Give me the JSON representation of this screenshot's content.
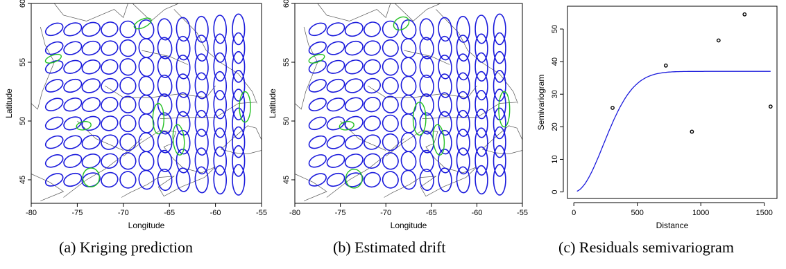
{
  "captions": [
    "(a) Kriging prediction",
    "(b) Estimated drift",
    "(c) Residuals semivariogram"
  ],
  "colors": {
    "ellipse": "#1a1adc",
    "highlight": "#22c022",
    "map": "#555555",
    "curve": "#1a1adc"
  },
  "chart_data": [
    {
      "type": "ellipse-map",
      "panel": "a",
      "xlabel": "Longitude",
      "ylabel": "Latitude",
      "xlim": [
        -80,
        -55
      ],
      "ylim": [
        43,
        60
      ],
      "xticks": [
        "-80",
        "-75",
        "-70",
        "-65",
        "-60",
        "-55"
      ],
      "yticks": [
        "45",
        "50",
        "55",
        "60"
      ],
      "grid_lon": [
        -77.5,
        -75.5,
        -73.5,
        -71.5,
        -69.5,
        -67.5,
        -65.5,
        -63.5,
        -61.5,
        -59.5,
        -57.5
      ],
      "grid_lat": [
        45,
        46.6,
        48.2,
        49.8,
        51.4,
        53,
        54.6,
        56.2,
        57.8
      ],
      "half_width_deg": [
        1.0,
        1.0,
        1.0,
        0.9,
        0.85,
        0.8,
        0.75,
        0.72,
        0.7,
        0.68,
        0.66
      ],
      "half_height_deg": [
        0.45,
        0.5,
        0.55,
        0.6,
        0.7,
        0.8,
        0.9,
        1.0,
        1.1,
        1.2,
        1.3
      ],
      "tilt_deg": [
        25,
        22,
        20,
        18,
        12,
        8,
        5,
        3,
        2,
        1,
        0
      ],
      "highlights": [
        {
          "lon": -73.5,
          "lat": 45.2,
          "a": 0.9,
          "b": 0.8,
          "tilt": 0
        },
        {
          "lon": -74.3,
          "lat": 49.6,
          "a": 0.8,
          "b": 0.35,
          "tilt": 10
        },
        {
          "lon": -66.2,
          "lat": 50.2,
          "a": 0.6,
          "b": 1.3,
          "tilt": 0
        },
        {
          "lon": -64.0,
          "lat": 48.4,
          "a": 0.6,
          "b": 1.3,
          "tilt": 5
        },
        {
          "lon": -56.8,
          "lat": 51.2,
          "a": 0.6,
          "b": 1.3,
          "tilt": 0
        },
        {
          "lon": -67.9,
          "lat": 58.3,
          "a": 1.0,
          "b": 0.35,
          "tilt": 25
        },
        {
          "lon": -77.6,
          "lat": 55.3,
          "a": 0.9,
          "b": 0.3,
          "tilt": 20
        }
      ]
    },
    {
      "type": "ellipse-map",
      "panel": "b",
      "xlabel": "Longitude",
      "ylabel": "Latitude",
      "xlim": [
        -80,
        -55
      ],
      "ylim": [
        43,
        60
      ],
      "xticks": [
        "-80",
        "-75",
        "-70",
        "-65",
        "-60",
        "-55"
      ],
      "yticks": [
        "45",
        "50",
        "55",
        "60"
      ],
      "grid_lon": [
        -77.5,
        -75.5,
        -73.5,
        -71.5,
        -69.5,
        -67.5,
        -65.5,
        -63.5,
        -61.5,
        -59.5,
        -57.5
      ],
      "grid_lat": [
        45,
        46.6,
        48.2,
        49.8,
        51.4,
        53,
        54.6,
        56.2,
        57.8
      ],
      "half_width_deg": [
        1.0,
        1.0,
        1.0,
        0.9,
        0.85,
        0.8,
        0.75,
        0.72,
        0.7,
        0.68,
        0.66
      ],
      "half_height_deg": [
        0.45,
        0.5,
        0.55,
        0.6,
        0.7,
        0.8,
        0.9,
        1.0,
        1.1,
        1.2,
        1.3
      ],
      "tilt_deg": [
        25,
        22,
        20,
        18,
        12,
        8,
        5,
        3,
        2,
        1,
        0
      ],
      "highlights": [
        {
          "lon": -73.5,
          "lat": 45.1,
          "a": 0.9,
          "b": 0.8,
          "tilt": 0
        },
        {
          "lon": -74.3,
          "lat": 49.6,
          "a": 0.8,
          "b": 0.35,
          "tilt": 10
        },
        {
          "lon": -66.3,
          "lat": 50.2,
          "a": 0.7,
          "b": 1.4,
          "tilt": 0
        },
        {
          "lon": -64.2,
          "lat": 48.4,
          "a": 0.6,
          "b": 1.3,
          "tilt": 5
        },
        {
          "lon": -57.0,
          "lat": 51.0,
          "a": 0.6,
          "b": 1.5,
          "tilt": 0
        },
        {
          "lon": -68.3,
          "lat": 58.3,
          "a": 0.9,
          "b": 0.5,
          "tilt": 30
        },
        {
          "lon": -77.6,
          "lat": 55.3,
          "a": 0.9,
          "b": 0.3,
          "tilt": 20
        }
      ]
    },
    {
      "type": "scatter",
      "panel": "c",
      "xlabel": "Distance",
      "ylabel": "Semivariogram",
      "xlim": [
        -50,
        1600
      ],
      "ylim": [
        -2,
        57
      ],
      "xticks": [
        0,
        500,
        1000,
        1500
      ],
      "yticks": [
        0,
        10,
        20,
        30,
        40,
        50
      ],
      "points": [
        {
          "x": 305,
          "y": 25.8
        },
        {
          "x": 725,
          "y": 38.8
        },
        {
          "x": 930,
          "y": 18.5
        },
        {
          "x": 1140,
          "y": 46.5
        },
        {
          "x": 1345,
          "y": 54.5
        },
        {
          "x": 1550,
          "y": 26.2
        }
      ],
      "model": {
        "type": "gaussian",
        "sill": 37,
        "range": 330,
        "nugget": 0,
        "x_start": 25,
        "x_end": 1550
      }
    }
  ]
}
